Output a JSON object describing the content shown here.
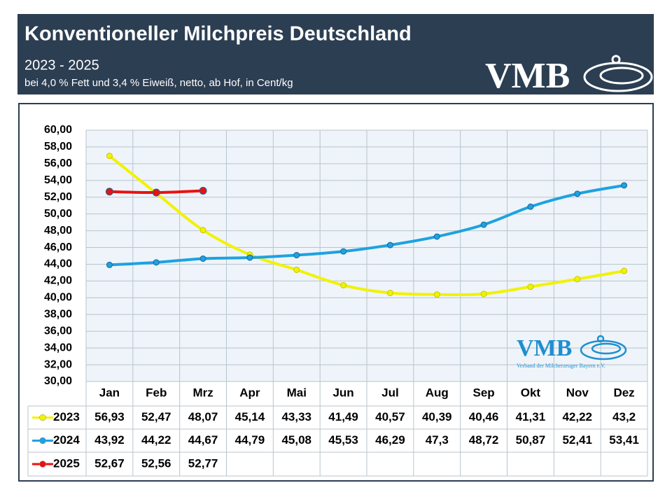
{
  "header": {
    "title": "Konventioneller Milchpreis Deutschland",
    "subtitle": "2023 - 2025",
    "note": "bei 4,0 % Fett und 3,4 % Eiweiß, netto, ab Hof, in Cent/kg"
  },
  "logo": {
    "text": "VMB",
    "caption": "Verband der Milcherzeuger Bayern e.V."
  },
  "chart_data": {
    "type": "line",
    "categories": [
      "Jan",
      "Feb",
      "Mrz",
      "Apr",
      "Mai",
      "Jun",
      "Jul",
      "Aug",
      "Sep",
      "Okt",
      "Nov",
      "Dez"
    ],
    "series": [
      {
        "name": "2023",
        "color": "#f2f200",
        "values": [
          56.93,
          52.47,
          48.07,
          45.14,
          43.33,
          41.49,
          40.57,
          40.39,
          40.46,
          41.31,
          42.22,
          43.2
        ],
        "value_labels": [
          "56,93",
          "52,47",
          "48,07",
          "45,14",
          "43,33",
          "41,49",
          "40,57",
          "40,39",
          "40,46",
          "41,31",
          "42,22",
          "43,2"
        ]
      },
      {
        "name": "2024",
        "color": "#1ea2e0",
        "values": [
          43.92,
          44.22,
          44.67,
          44.79,
          45.08,
          45.53,
          46.29,
          47.3,
          48.72,
          50.87,
          52.41,
          53.41
        ],
        "value_labels": [
          "43,92",
          "44,22",
          "44,67",
          "44,79",
          "45,08",
          "45,53",
          "46,29",
          "47,3",
          "48,72",
          "50,87",
          "52,41",
          "53,41"
        ]
      },
      {
        "name": "2025",
        "color": "#e81212",
        "values": [
          52.67,
          52.56,
          52.77,
          null,
          null,
          null,
          null,
          null,
          null,
          null,
          null,
          null
        ],
        "value_labels": [
          "52,67",
          "52,56",
          "52,77",
          null,
          null,
          null,
          null,
          null,
          null,
          null,
          null,
          null
        ]
      }
    ],
    "ylim": [
      30,
      60
    ],
    "yticks": [
      {
        "value": 30,
        "label": "30,00"
      },
      {
        "value": 32,
        "label": "32,00"
      },
      {
        "value": 34,
        "label": "34,00"
      },
      {
        "value": 36,
        "label": "36,00"
      },
      {
        "value": 38,
        "label": "38,00"
      },
      {
        "value": 40,
        "label": "40,00"
      },
      {
        "value": 42,
        "label": "42,00"
      },
      {
        "value": 44,
        "label": "44,00"
      },
      {
        "value": 46,
        "label": "46,00"
      },
      {
        "value": 48,
        "label": "48,00"
      },
      {
        "value": 50,
        "label": "50,00"
      },
      {
        "value": 52,
        "label": "52,00"
      },
      {
        "value": 54,
        "label": "54,00"
      },
      {
        "value": 56,
        "label": "56,00"
      },
      {
        "value": 58,
        "label": "58,00"
      },
      {
        "value": 60,
        "label": "60,00"
      }
    ],
    "grid": true
  }
}
